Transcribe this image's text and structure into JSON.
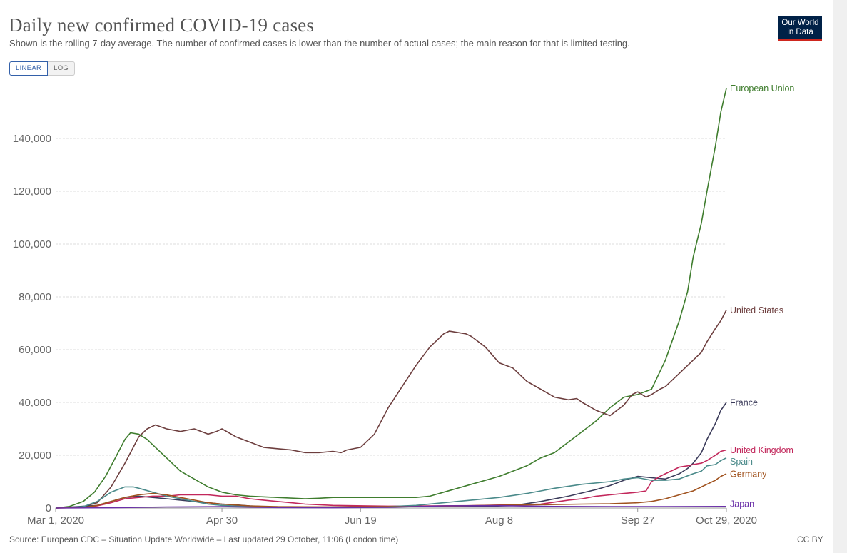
{
  "header": {
    "title": "Daily new confirmed COVID-19 cases",
    "subtitle": "Shown is the rolling 7-day average. The number of confirmed cases is lower than the number of actual cases; the main reason for that is limited testing."
  },
  "logo": {
    "line1": "Our World",
    "line2": "in Data"
  },
  "scale_toggle": {
    "linear": "LINEAR",
    "log": "LOG"
  },
  "footer": {
    "source": "Source: European CDC – Situation Update Worldwide – Last updated 29 October, 11:06 (London time)",
    "license": "CC BY"
  },
  "chart_data": {
    "type": "line",
    "title": "Daily new confirmed COVID-19 cases",
    "xlabel": "",
    "ylabel": "",
    "x_unit": "days since Mar 1, 2020",
    "xlim": [
      0,
      242
    ],
    "ylim": [
      0,
      160000
    ],
    "y_ticks": [
      {
        "value": 0,
        "label": "0"
      },
      {
        "value": 20000,
        "label": "20,000"
      },
      {
        "value": 40000,
        "label": "40,000"
      },
      {
        "value": 60000,
        "label": "60,000"
      },
      {
        "value": 80000,
        "label": "80,000"
      },
      {
        "value": 100000,
        "label": "100,000"
      },
      {
        "value": 120000,
        "label": "120,000"
      },
      {
        "value": 140000,
        "label": "140,000"
      }
    ],
    "x_ticks": [
      {
        "value": 0,
        "label": "Mar 1, 2020"
      },
      {
        "value": 60,
        "label": "Apr 30"
      },
      {
        "value": 110,
        "label": "Jun 19"
      },
      {
        "value": 160,
        "label": "Aug 8"
      },
      {
        "value": 210,
        "label": "Sep 27"
      },
      {
        "value": 242,
        "label": "Oct 29, 2020"
      }
    ],
    "grid": true,
    "series": [
      {
        "name": "European Union",
        "color": "#3f7d2e",
        "x": [
          0,
          5,
          10,
          14,
          18,
          22,
          25,
          27,
          30,
          33,
          36,
          40,
          45,
          50,
          55,
          60,
          65,
          70,
          80,
          90,
          95,
          100,
          110,
          120,
          130,
          135,
          140,
          150,
          160,
          165,
          170,
          175,
          180,
          185,
          190,
          195,
          200,
          205,
          210,
          215,
          220,
          225,
          228,
          230,
          233,
          235,
          238,
          240,
          242
        ],
        "y": [
          0,
          600,
          2500,
          6000,
          12000,
          20000,
          26000,
          28500,
          28000,
          26000,
          23000,
          19000,
          14000,
          11000,
          8000,
          6000,
          5000,
          4500,
          4000,
          3500,
          3700,
          4000,
          4000,
          4000,
          4000,
          4500,
          6000,
          9000,
          12000,
          14000,
          16000,
          19000,
          21000,
          25000,
          29000,
          33000,
          38000,
          42000,
          43000,
          45000,
          56000,
          71000,
          82000,
          95000,
          108000,
          120000,
          137000,
          150000,
          159000
        ]
      },
      {
        "name": "United States",
        "color": "#6d3e3e",
        "x": [
          0,
          10,
          15,
          20,
          25,
          30,
          33,
          36,
          40,
          45,
          50,
          55,
          58,
          60,
          65,
          70,
          75,
          80,
          85,
          90,
          95,
          100,
          103,
          105,
          110,
          115,
          120,
          125,
          130,
          135,
          140,
          142,
          145,
          148,
          150,
          155,
          160,
          165,
          170,
          175,
          180,
          185,
          188,
          190,
          195,
          200,
          205,
          208,
          210,
          213,
          215,
          218,
          220,
          225,
          230,
          233,
          235,
          238,
          240,
          242
        ],
        "y": [
          0,
          500,
          2000,
          8000,
          17000,
          27000,
          30000,
          31500,
          30000,
          29000,
          30000,
          28000,
          29000,
          30000,
          27000,
          25000,
          23000,
          22500,
          22000,
          21000,
          21000,
          21500,
          21000,
          22000,
          23000,
          28000,
          38000,
          46000,
          54000,
          61000,
          66000,
          67000,
          66500,
          66000,
          65000,
          61000,
          55000,
          53000,
          48000,
          45000,
          42000,
          41000,
          41500,
          40000,
          37000,
          35000,
          39000,
          43000,
          44000,
          42000,
          43000,
          45000,
          46000,
          51000,
          56000,
          59000,
          63000,
          68000,
          71000,
          75000
        ]
      },
      {
        "name": "France",
        "color": "#3b3b5a",
        "x": [
          0,
          15,
          20,
          25,
          30,
          35,
          40,
          45,
          50,
          55,
          60,
          65,
          70,
          80,
          100,
          130,
          150,
          165,
          175,
          185,
          195,
          200,
          205,
          210,
          215,
          220,
          225,
          228,
          230,
          233,
          235,
          238,
          240,
          242
        ],
        "y": [
          0,
          1000,
          2500,
          4000,
          4500,
          4000,
          3500,
          3000,
          2500,
          2000,
          1500,
          1200,
          800,
          300,
          400,
          500,
          500,
          900,
          2500,
          4500,
          7000,
          8500,
          10500,
          12000,
          11500,
          11000,
          13000,
          15000,
          17000,
          21000,
          26000,
          32000,
          37000,
          40000
        ]
      },
      {
        "name": "United Kingdom",
        "color": "#c2275b",
        "x": [
          0,
          10,
          15,
          20,
          25,
          30,
          35,
          40,
          45,
          50,
          55,
          60,
          65,
          70,
          75,
          80,
          85,
          90,
          100,
          120,
          150,
          175,
          185,
          190,
          195,
          200,
          205,
          210,
          213,
          215,
          218,
          220,
          223,
          225,
          228,
          230,
          233,
          235,
          238,
          240,
          242
        ],
        "y": [
          0,
          200,
          800,
          2000,
          3500,
          4000,
          4500,
          4500,
          5000,
          5000,
          5000,
          4500,
          4500,
          3500,
          3000,
          2500,
          2000,
          1500,
          1000,
          700,
          900,
          1500,
          3000,
          3500,
          4500,
          5000,
          5500,
          6000,
          6500,
          10000,
          12000,
          13000,
          14500,
          15500,
          16000,
          16500,
          17000,
          18000,
          20000,
          21500,
          22000
        ]
      },
      {
        "name": "Spain",
        "color": "#4a8a8a",
        "x": [
          0,
          10,
          15,
          20,
          25,
          28,
          30,
          35,
          40,
          45,
          50,
          55,
          60,
          70,
          80,
          90,
          100,
          110,
          120,
          130,
          140,
          150,
          160,
          170,
          175,
          180,
          190,
          200,
          205,
          210,
          215,
          220,
          225,
          230,
          233,
          235,
          238,
          240,
          242
        ],
        "y": [
          0,
          500,
          2500,
          6000,
          8000,
          8000,
          7500,
          6000,
          4500,
          3500,
          2500,
          1500,
          1000,
          500,
          300,
          200,
          300,
          400,
          500,
          1000,
          2000,
          3000,
          4000,
          5500,
          6500,
          7500,
          9000,
          10000,
          11000,
          11500,
          10500,
          10500,
          11000,
          13000,
          14000,
          16000,
          16500,
          18000,
          19000
        ]
      },
      {
        "name": "Germany",
        "color": "#a0521e",
        "x": [
          0,
          10,
          15,
          20,
          25,
          30,
          35,
          40,
          45,
          50,
          55,
          60,
          70,
          80,
          100,
          130,
          150,
          170,
          190,
          200,
          210,
          215,
          220,
          225,
          230,
          233,
          235,
          238,
          240,
          242
        ],
        "y": [
          0,
          200,
          1000,
          2500,
          4000,
          5000,
          5500,
          5000,
          4000,
          3000,
          2000,
          1500,
          800,
          500,
          400,
          500,
          900,
          1200,
          1500,
          1600,
          2000,
          2500,
          3500,
          5000,
          6500,
          8000,
          9000,
          10500,
          12000,
          13000
        ]
      },
      {
        "name": "Japan",
        "color": "#6a2fa8",
        "x": [
          0,
          20,
          40,
          60,
          80,
          100,
          120,
          140,
          160,
          180,
          200,
          220,
          242
        ],
        "y": [
          0,
          100,
          400,
          500,
          200,
          100,
          300,
          800,
          900,
          600,
          500,
          500,
          600
        ]
      }
    ],
    "series_labels": [
      {
        "series": "European Union",
        "label": "European Union"
      },
      {
        "series": "United States",
        "label": "United States"
      },
      {
        "series": "France",
        "label": "France"
      },
      {
        "series": "United Kingdom",
        "label": "United Kingdom"
      },
      {
        "series": "Spain",
        "label": "Spain"
      },
      {
        "series": "Germany",
        "label": "Germany"
      },
      {
        "series": "Japan",
        "label": "Japan"
      }
    ]
  }
}
